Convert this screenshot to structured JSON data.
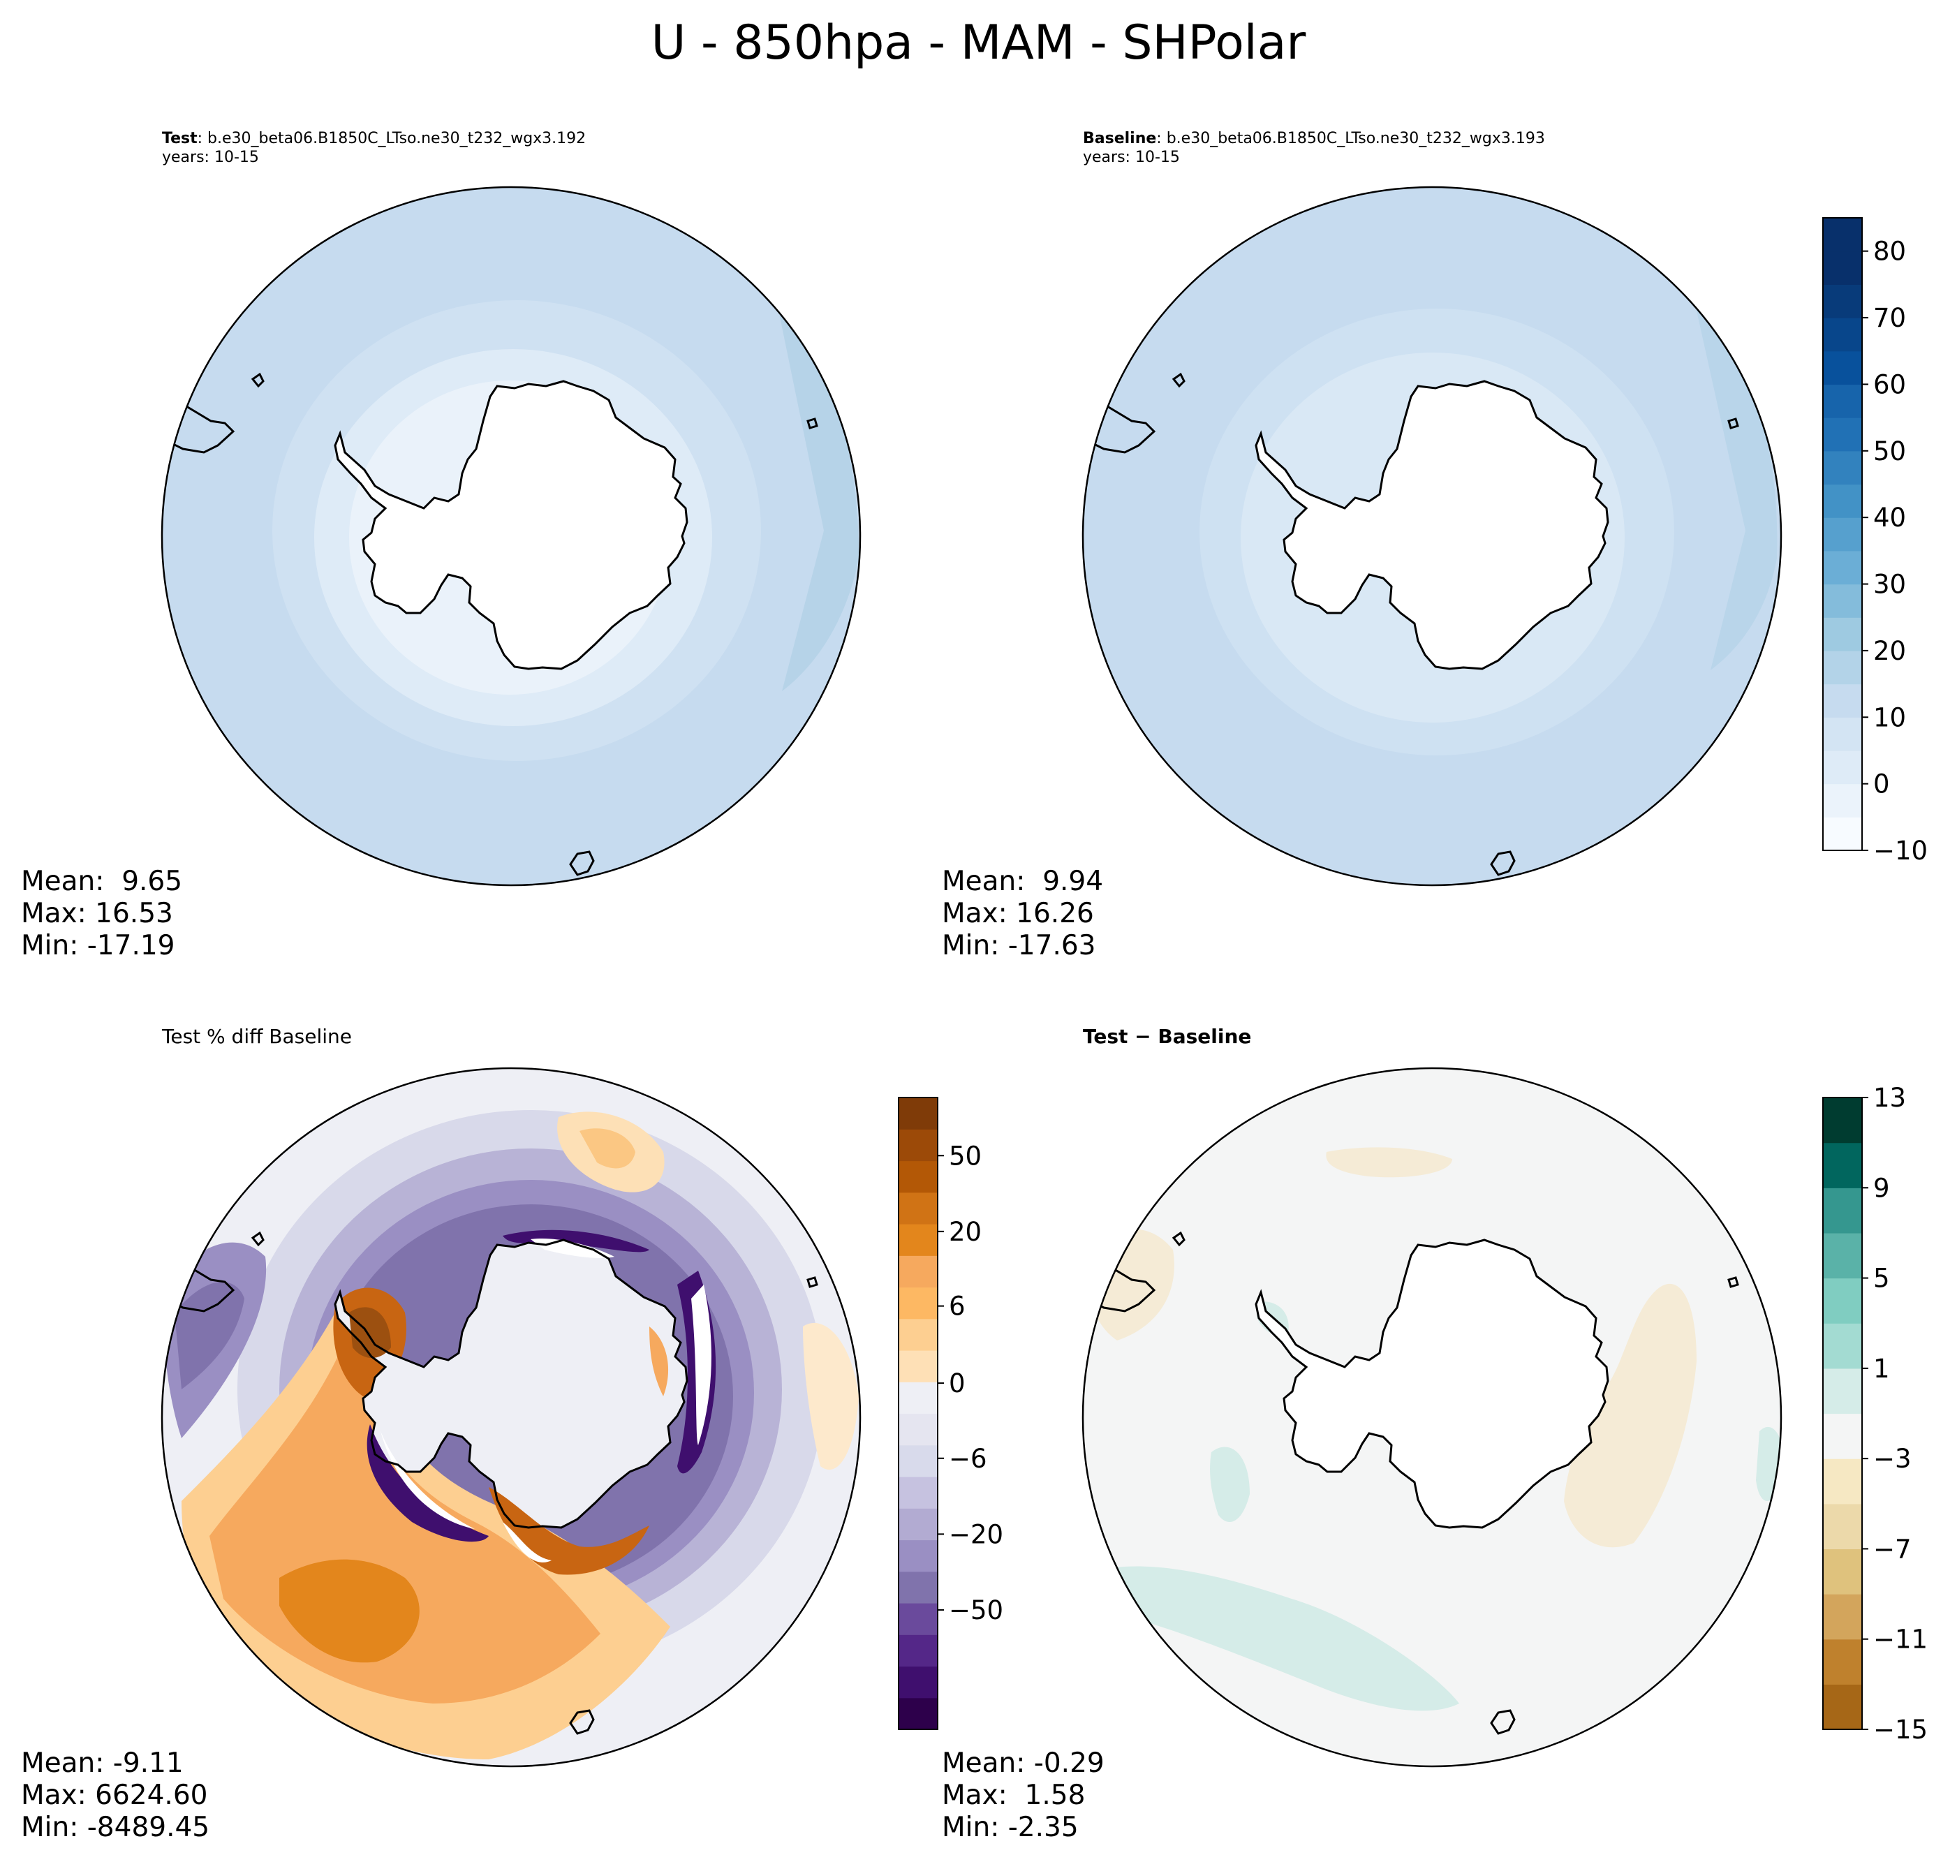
{
  "figure": {
    "title": "U - 850hpa - MAM - SHPolar"
  },
  "panels": {
    "test": {
      "label": "Test",
      "case": ": b.e30_beta06.B1850C_LTso.ne30_t232_wgx3.192",
      "years": "years: 10-15",
      "stats": [
        "Mean:  9.65",
        "Max: 16.53",
        "Min: -17.19"
      ]
    },
    "baseline": {
      "label": "Baseline",
      "case": ": b.e30_beta06.B1850C_LTso.ne30_t232_wgx3.193",
      "years": "years: 10-15",
      "stats": [
        "Mean:  9.94",
        "Max: 16.26",
        "Min: -17.63"
      ]
    },
    "pct_diff": {
      "title": "Test % diff Baseline",
      "stats": [
        "Mean: -9.11",
        "Max: 6624.60",
        "Min: -8489.45"
      ]
    },
    "abs_diff": {
      "title": "Test − Baseline",
      "stats": [
        "Mean: -0.29",
        "Max:  1.58",
        "Min: -2.35"
      ]
    }
  },
  "chart_data": [
    {
      "type": "heatmap",
      "title": "Test",
      "projection": "south-polar-stereographic",
      "variable": "U",
      "level": "850hpa",
      "season": "MAM",
      "region": "SHPolar",
      "mean": 9.65,
      "max": 16.53,
      "min": -17.19,
      "colormap": "Blues",
      "colorbar_ticks": [
        "80",
        "70",
        "60",
        "50",
        "40",
        "30",
        "20",
        "10",
        "0",
        "−10"
      ],
      "colorbar_range": [
        -10,
        85
      ]
    },
    {
      "type": "heatmap",
      "title": "Baseline",
      "projection": "south-polar-stereographic",
      "mean": 9.94,
      "max": 16.26,
      "min": -17.63,
      "colormap": "Blues"
    },
    {
      "type": "heatmap",
      "title": "Test % diff Baseline",
      "projection": "south-polar-stereographic",
      "mean": -9.11,
      "max": 6624.6,
      "min": -8489.45,
      "colormap": "PuOr_r",
      "colorbar_ticks": [
        "50",
        "20",
        "6",
        "0",
        "−6",
        "−20",
        "−50"
      ]
    },
    {
      "type": "heatmap",
      "title": "Test − Baseline",
      "projection": "south-polar-stereographic",
      "mean": -0.29,
      "max": 1.58,
      "min": -2.35,
      "colormap": "BrBG",
      "colorbar_ticks": [
        "13",
        "9",
        "5",
        "1",
        "−3",
        "−7",
        "−11",
        "−15"
      ],
      "colorbar_range": [
        -15,
        13
      ]
    }
  ]
}
